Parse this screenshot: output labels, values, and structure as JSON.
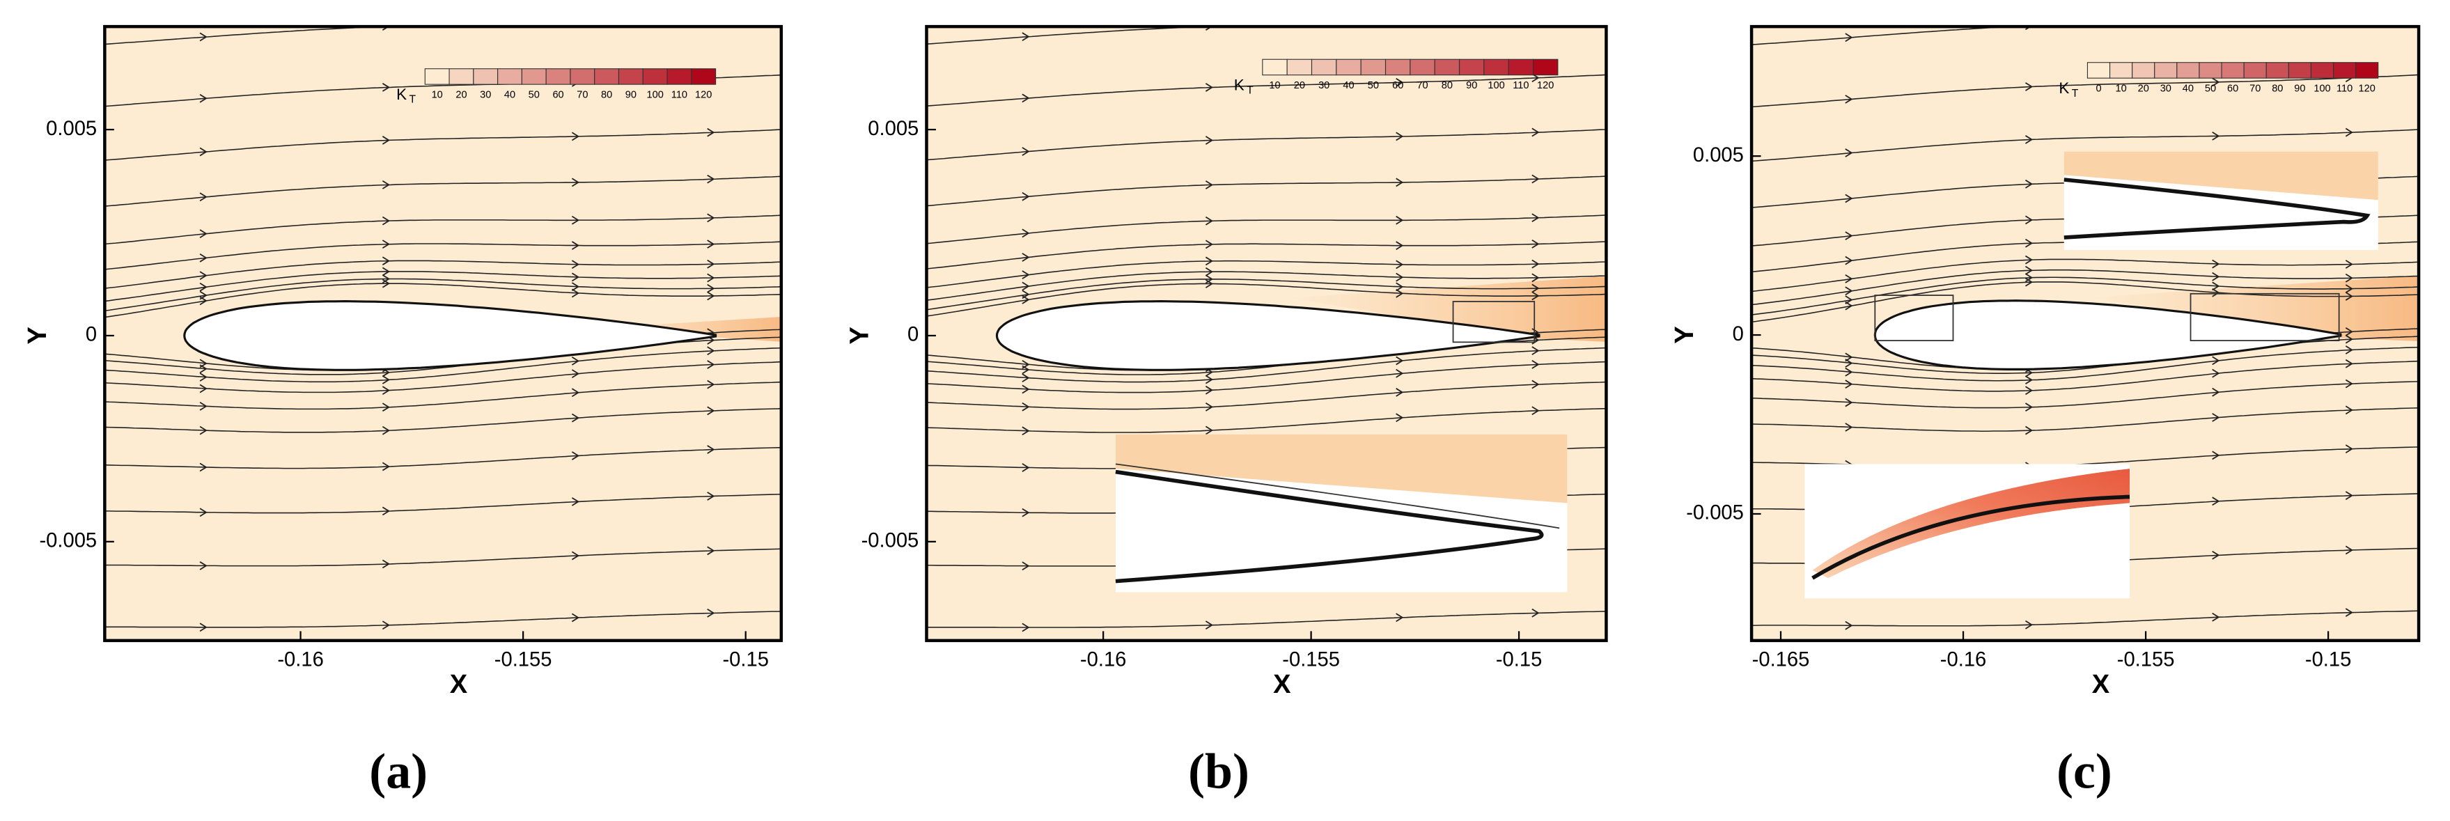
{
  "chart_data": [
    {
      "type": "contour",
      "x_label": "X",
      "y_label": "Y",
      "caption": "(a)",
      "background": "#fdebd2",
      "xlim": [
        -0.1644,
        -0.1492
      ],
      "ylim": [
        -0.0074,
        0.0075
      ],
      "xticks": [
        -0.16,
        -0.155,
        -0.15
      ],
      "yticks": [
        -0.005,
        0,
        0.005
      ],
      "colorbar": {
        "label": "K",
        "label_sub": "T",
        "ticks": [
          10,
          20,
          30,
          40,
          50,
          60,
          70,
          80,
          90,
          100,
          110,
          120
        ],
        "color_low": "#fdebd2",
        "color_high": "#b0061a"
      }
    },
    {
      "type": "contour",
      "x_label": "X",
      "y_label": "Y",
      "caption": "(b)",
      "background": "#fdebd2",
      "xlim": [
        -0.16425,
        -0.1479
      ],
      "ylim": [
        -0.0074,
        0.0075
      ],
      "xticks": [
        -0.16,
        -0.155,
        -0.15
      ],
      "yticks": [
        -0.005,
        0,
        0.005
      ],
      "colorbar": {
        "label": "K",
        "label_sub": "T",
        "ticks": [
          10,
          20,
          30,
          40,
          50,
          60,
          70,
          80,
          90,
          100,
          110,
          120
        ],
        "color_low": "#fdebd2",
        "color_high": "#b0061a"
      }
    },
    {
      "type": "contour",
      "x_label": "X",
      "y_label": "Y",
      "caption": "(c)",
      "background": "#fdebd2",
      "xlim": [
        -0.1658,
        -0.14752
      ],
      "ylim": [
        -0.00854,
        0.00862
      ],
      "xticks": [
        -0.165,
        -0.16,
        -0.155,
        -0.15
      ],
      "yticks": [
        -0.005,
        0,
        0.005
      ],
      "colorbar": {
        "label": "K",
        "label_sub": "T",
        "ticks": [
          0,
          10,
          20,
          30,
          40,
          50,
          60,
          70,
          80,
          90,
          100,
          110,
          120
        ],
        "color_low": "#fdebd2",
        "color_high": "#b0061a"
      }
    }
  ]
}
